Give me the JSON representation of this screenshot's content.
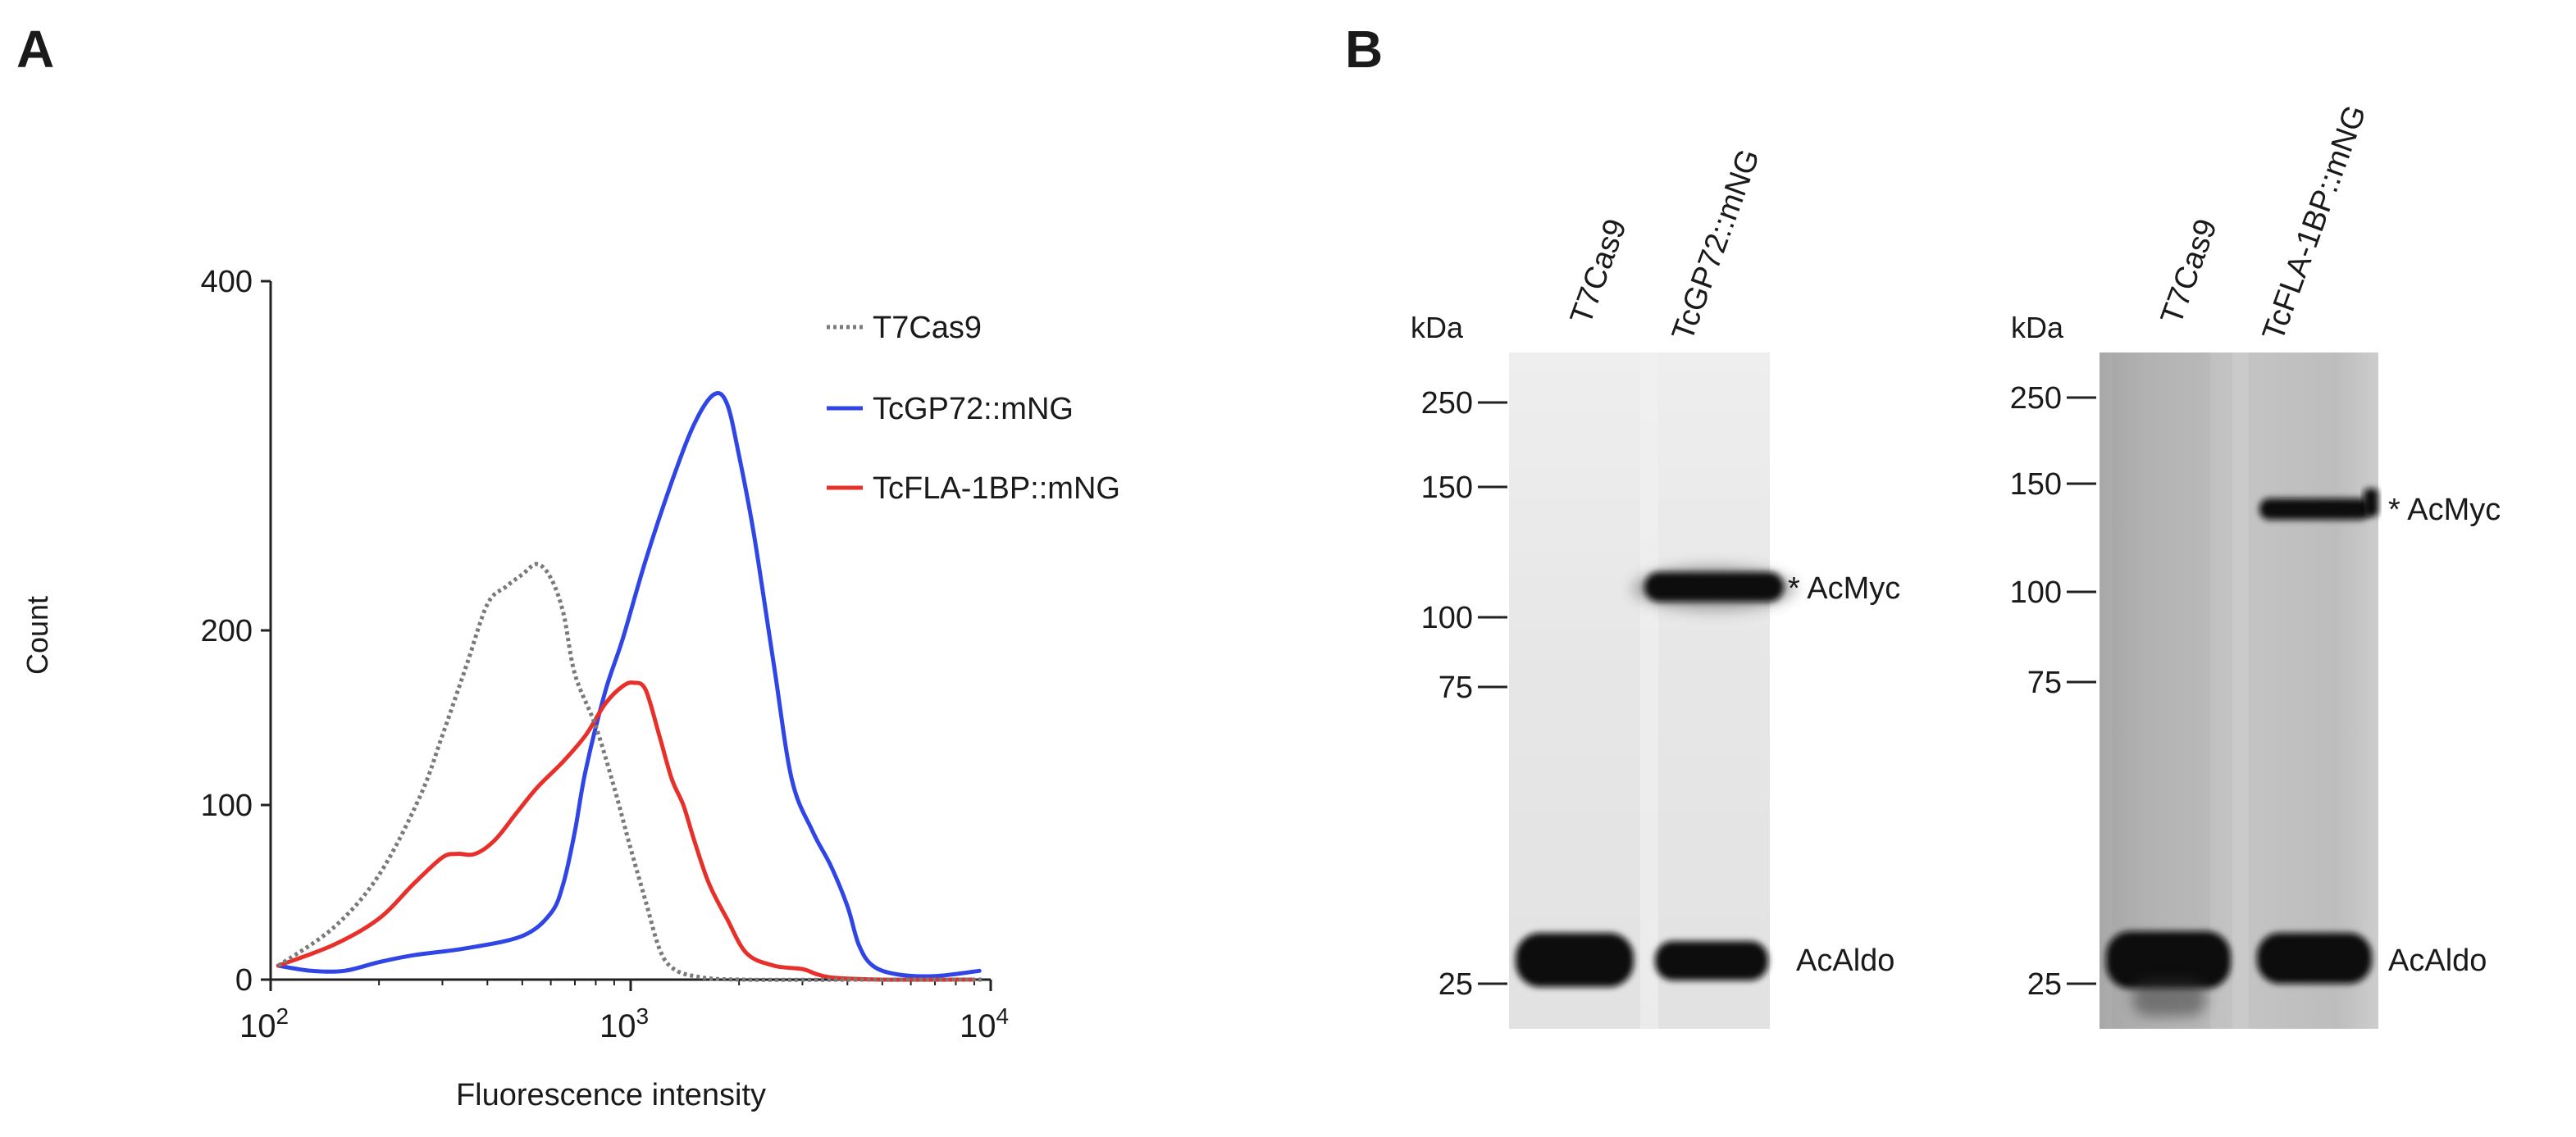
{
  "panels": {
    "a": "A",
    "b": "B"
  },
  "chart_data": {
    "type": "line",
    "xscale": "log",
    "xlim": [
      100,
      10000
    ],
    "ylim": [
      0,
      400
    ],
    "xlabel": "Fluorescence intensity",
    "ylabel": "Count",
    "yticks": [
      "0",
      "100",
      "200",
      "400"
    ],
    "xticks": [
      {
        "base": "10",
        "exp": "2"
      },
      {
        "base": "10",
        "exp": "3"
      },
      {
        "base": "10",
        "exp": "4"
      }
    ],
    "legend_position": "top-right",
    "grid": false,
    "series": [
      {
        "name": "T7Cas9",
        "color": "#7a7a7a",
        "style": "dotted",
        "points": [
          [
            105,
            8
          ],
          [
            150,
            30
          ],
          [
            200,
            60
          ],
          [
            260,
            105
          ],
          [
            300,
            140
          ],
          [
            350,
            180
          ],
          [
            400,
            215
          ],
          [
            450,
            225
          ],
          [
            500,
            232
          ],
          [
            550,
            238
          ],
          [
            600,
            230
          ],
          [
            650,
            210
          ],
          [
            700,
            175
          ],
          [
            800,
            145
          ],
          [
            900,
            110
          ],
          [
            1000,
            75
          ],
          [
            1100,
            45
          ],
          [
            1200,
            18
          ],
          [
            1300,
            7
          ],
          [
            1500,
            2
          ],
          [
            2000,
            0
          ],
          [
            5000,
            0
          ],
          [
            9500,
            0
          ]
        ]
      },
      {
        "name": "TcGP72::mNG",
        "color": "#2f45e6",
        "style": "solid",
        "points": [
          [
            105,
            8
          ],
          [
            130,
            5
          ],
          [
            160,
            5
          ],
          [
            200,
            10
          ],
          [
            250,
            14
          ],
          [
            350,
            18
          ],
          [
            500,
            25
          ],
          [
            600,
            38
          ],
          [
            650,
            55
          ],
          [
            700,
            85
          ],
          [
            750,
            120
          ],
          [
            850,
            165
          ],
          [
            950,
            195
          ],
          [
            1100,
            240
          ],
          [
            1300,
            285
          ],
          [
            1500,
            318
          ],
          [
            1700,
            335
          ],
          [
            1850,
            330
          ],
          [
            2000,
            300
          ],
          [
            2200,
            255
          ],
          [
            2500,
            180
          ],
          [
            2800,
            115
          ],
          [
            3200,
            85
          ],
          [
            3600,
            65
          ],
          [
            4000,
            42
          ],
          [
            4300,
            20
          ],
          [
            4700,
            8
          ],
          [
            5500,
            3
          ],
          [
            7000,
            2
          ],
          [
            9300,
            5
          ]
        ]
      },
      {
        "name": "TcFLA-1BP::mNG",
        "color": "#e8302a",
        "style": "solid",
        "points": [
          [
            105,
            8
          ],
          [
            150,
            20
          ],
          [
            200,
            35
          ],
          [
            250,
            55
          ],
          [
            300,
            70
          ],
          [
            330,
            72
          ],
          [
            370,
            72
          ],
          [
            420,
            80
          ],
          [
            480,
            95
          ],
          [
            550,
            110
          ],
          [
            650,
            125
          ],
          [
            750,
            140
          ],
          [
            850,
            158
          ],
          [
            950,
            168
          ],
          [
            1020,
            170
          ],
          [
            1100,
            166
          ],
          [
            1200,
            140
          ],
          [
            1300,
            115
          ],
          [
            1400,
            100
          ],
          [
            1500,
            80
          ],
          [
            1650,
            55
          ],
          [
            1850,
            35
          ],
          [
            2100,
            15
          ],
          [
            2500,
            8
          ],
          [
            3000,
            6
          ],
          [
            3300,
            3
          ],
          [
            3700,
            1
          ],
          [
            5000,
            0
          ],
          [
            9000,
            0
          ]
        ]
      }
    ]
  },
  "blot_left": {
    "kda_label": "kDa",
    "markers": [
      "250",
      "150",
      "100",
      "75",
      "25"
    ],
    "lanes": [
      "T7Cas9",
      "TcGP72::mNG"
    ],
    "bands": [
      {
        "label": "* AcMyc"
      },
      {
        "label": "AcAldo"
      }
    ]
  },
  "blot_right": {
    "kda_label": "kDa",
    "markers": [
      "250",
      "150",
      "100",
      "75",
      "25"
    ],
    "lanes": [
      "T7Cas9",
      "TcFLA-1BP::mNG"
    ],
    "bands": [
      {
        "label": "* AcMyc"
      },
      {
        "label": "AcAldo"
      }
    ]
  }
}
